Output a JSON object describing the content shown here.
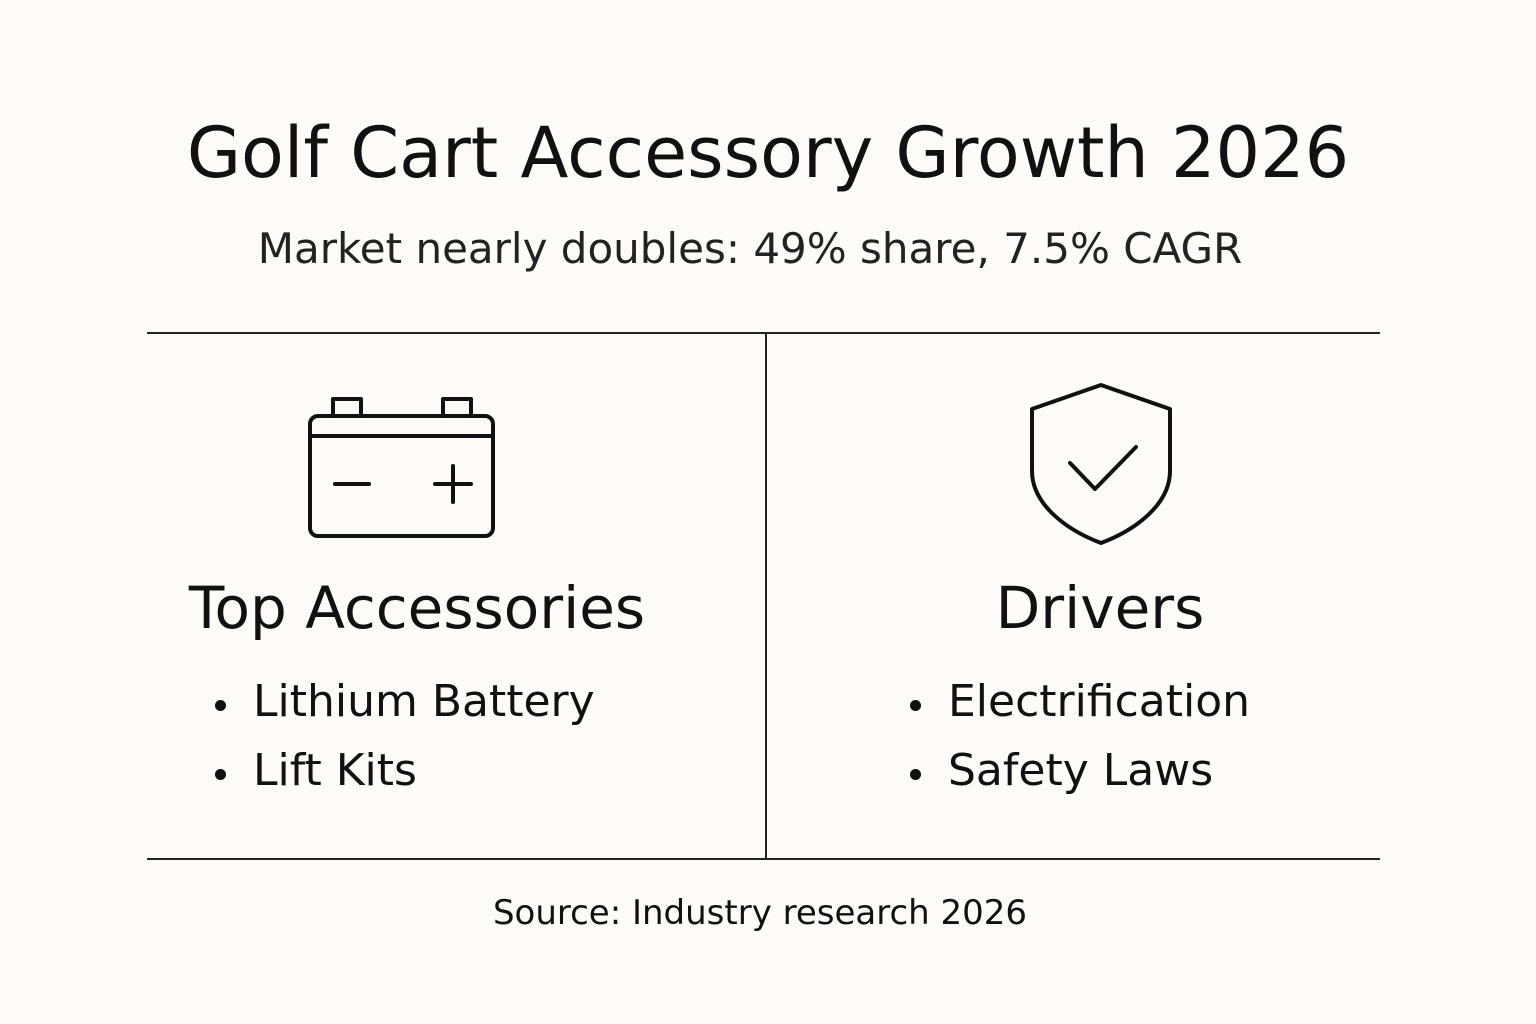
{
  "title": "Golf Cart Accessory Growth 2026",
  "subtitle": "Market nearly doubles: 49% share, 7.5% CAGR",
  "left": {
    "icon": "battery-icon",
    "heading": "Top Accessories",
    "items": [
      "Lithium Battery",
      "Lift Kits"
    ]
  },
  "right": {
    "icon": "shield-check-icon",
    "heading": "Drivers",
    "items": [
      "Electrification",
      "Safety Laws"
    ]
  },
  "source": "Source: Industry research 2026"
}
